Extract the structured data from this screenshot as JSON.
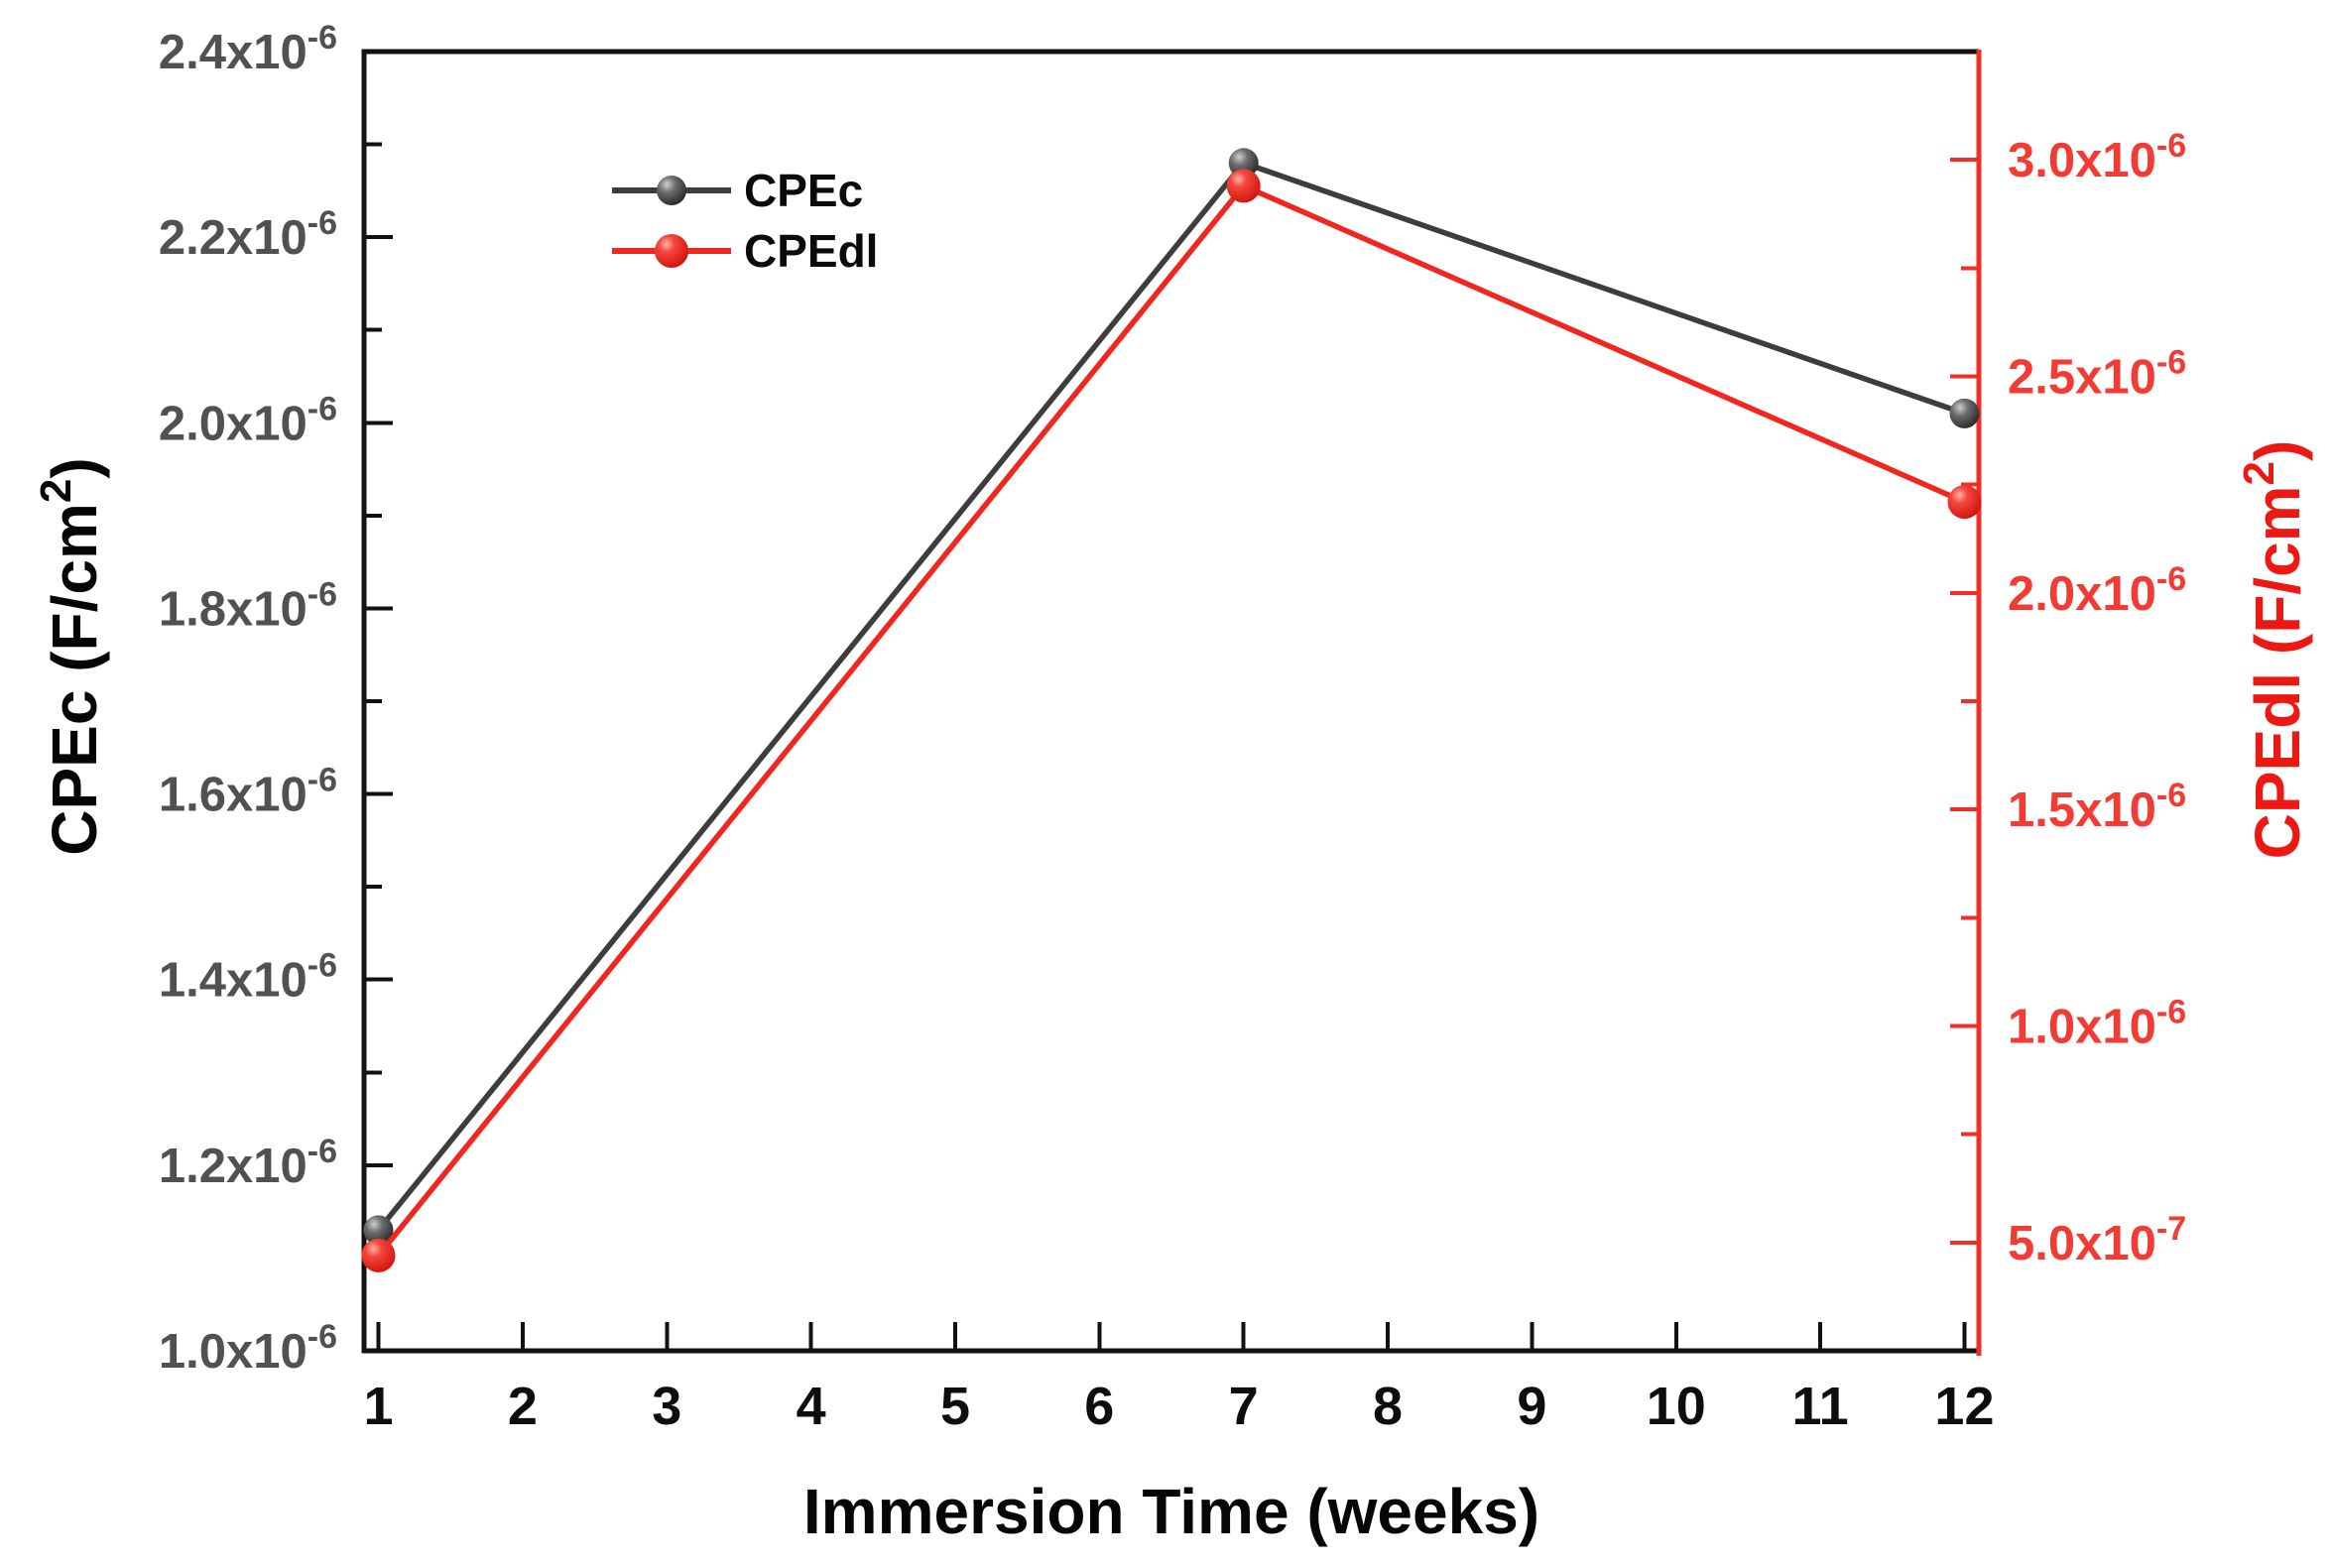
{
  "chart_data": {
    "type": "line",
    "title": "",
    "xlabel": "Immersion Time (weeks)",
    "x": [
      1,
      7,
      12
    ],
    "xlim": [
      0.9,
      12.1
    ],
    "x_ticks": [
      {
        "v": 1,
        "label": "1"
      },
      {
        "v": 2,
        "label": "2"
      },
      {
        "v": 3,
        "label": "3"
      },
      {
        "v": 4,
        "label": "4"
      },
      {
        "v": 5,
        "label": "5"
      },
      {
        "v": 6,
        "label": "6"
      },
      {
        "v": 7,
        "label": "7"
      },
      {
        "v": 8,
        "label": "8"
      },
      {
        "v": 9,
        "label": "9"
      },
      {
        "v": 10,
        "label": "10"
      },
      {
        "v": 11,
        "label": "11"
      },
      {
        "v": 12,
        "label": "12"
      }
    ],
    "series": [
      {
        "name": "CPEc",
        "axis": "left",
        "values": [
          1.13e-06,
          2.28e-06,
          2.01e-06
        ]
      },
      {
        "name": "CPEdl",
        "axis": "right",
        "values": [
          4.7e-07,
          2.94e-06,
          2.21e-06
        ]
      }
    ],
    "left_axis": {
      "title": {
        "pre": "CPEc (F/cm",
        "sup": "2",
        "post": ")"
      },
      "lim": [
        1e-06,
        2.4e-06
      ],
      "major_ticks": [
        {
          "v": 1e-06,
          "m": "1.0x10",
          "e": "-6"
        },
        {
          "v": 1.2e-06,
          "m": "1.2x10",
          "e": "-6"
        },
        {
          "v": 1.4e-06,
          "m": "1.4x10",
          "e": "-6"
        },
        {
          "v": 1.6e-06,
          "m": "1.6x10",
          "e": "-6"
        },
        {
          "v": 1.8e-06,
          "m": "1.8x10",
          "e": "-6"
        },
        {
          "v": 2e-06,
          "m": "2.0x10",
          "e": "-6"
        },
        {
          "v": 2.2e-06,
          "m": "2.2x10",
          "e": "-6"
        },
        {
          "v": 2.4e-06,
          "m": "2.4x10",
          "e": "-6"
        }
      ],
      "minor_ticks": [
        1.1e-06,
        1.3e-06,
        1.5e-06,
        1.7e-06,
        1.9e-06,
        2.1e-06,
        2.3e-06
      ]
    },
    "right_axis": {
      "title": {
        "pre": "CPEdl (F/cm",
        "sup": "2",
        "post": ")"
      },
      "lim": [
        2.5e-07,
        3.25e-06
      ],
      "major_ticks": [
        {
          "v": 5e-07,
          "m": "5.0x10",
          "e": "-7"
        },
        {
          "v": 1e-06,
          "m": "1.0x10",
          "e": "-6"
        },
        {
          "v": 1.5e-06,
          "m": "1.5x10",
          "e": "-6"
        },
        {
          "v": 2e-06,
          "m": "2.0x10",
          "e": "-6"
        },
        {
          "v": 2.5e-06,
          "m": "2.5x10",
          "e": "-6"
        },
        {
          "v": 3e-06,
          "m": "3.0x10",
          "e": "-6"
        }
      ],
      "minor_ticks": [
        7.5e-07,
        1.25e-06,
        1.75e-06,
        2.25e-06,
        2.75e-06
      ]
    },
    "legend": [
      "CPEc",
      "CPEdl"
    ],
    "colors": {
      "cpec_line": "#3d3d3d",
      "cpedl_line": "#f0261f",
      "axis_black": "#111111",
      "x_tick_label": "#0d0d0d",
      "left_tick_label": "#515151",
      "right_axis": "#f22d26",
      "right_tick_label": "#f43b33",
      "left_title": "#050505",
      "right_title": "#ee1812",
      "legend_text": "#0a0a0a"
    }
  }
}
